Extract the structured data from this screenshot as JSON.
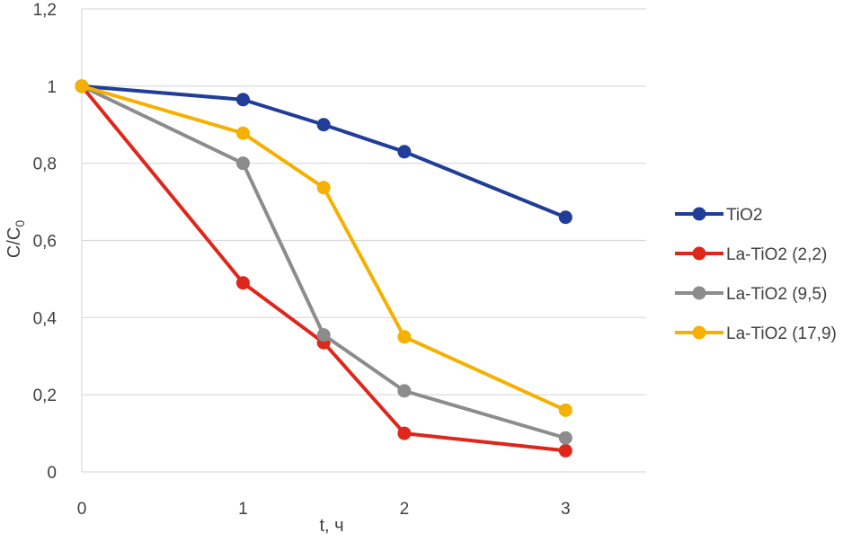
{
  "chart_data": {
    "type": "line",
    "title": "",
    "xlabel": "t, ч",
    "ylabel_main": "C/C",
    "ylabel_sub": "0",
    "xlim": [
      0,
      3.5
    ],
    "ylim": [
      0,
      1.2
    ],
    "yticks": [
      0,
      0.2,
      0.4,
      0.6,
      0.8,
      1,
      1.2
    ],
    "ytick_labels": [
      "0",
      "0,2",
      "0,4",
      "0,6",
      "0,8",
      "1",
      "1,2"
    ],
    "xticks": [
      0,
      1,
      2,
      3
    ],
    "xtick_labels": [
      "0",
      "1",
      "2",
      "3"
    ],
    "grid": "horizontal",
    "legend_position": "right",
    "series": [
      {
        "name": "TiO2",
        "color": "#1f3d99",
        "points": [
          [
            0,
            1
          ],
          [
            1,
            0.965
          ],
          [
            1.5,
            0.9
          ],
          [
            2,
            0.83
          ],
          [
            3,
            0.66
          ]
        ]
      },
      {
        "name": "La-TiO2 (2,2)",
        "color": "#e0261b",
        "points": [
          [
            0,
            1
          ],
          [
            1,
            0.49
          ],
          [
            1.5,
            0.335
          ],
          [
            2,
            0.1
          ],
          [
            3,
            0.055
          ]
        ]
      },
      {
        "name": "La-TiO2 (9,5)",
        "color": "#8c8c8c",
        "points": [
          [
            0,
            1
          ],
          [
            1,
            0.8
          ],
          [
            1.5,
            0.355
          ],
          [
            2,
            0.21
          ],
          [
            3,
            0.088
          ]
        ]
      },
      {
        "name": "La-TiO2 (17,9)",
        "color": "#f5b000",
        "points": [
          [
            0,
            1
          ],
          [
            1,
            0.878
          ],
          [
            1.5,
            0.737
          ],
          [
            2,
            0.35
          ],
          [
            3,
            0.16
          ]
        ]
      }
    ]
  }
}
